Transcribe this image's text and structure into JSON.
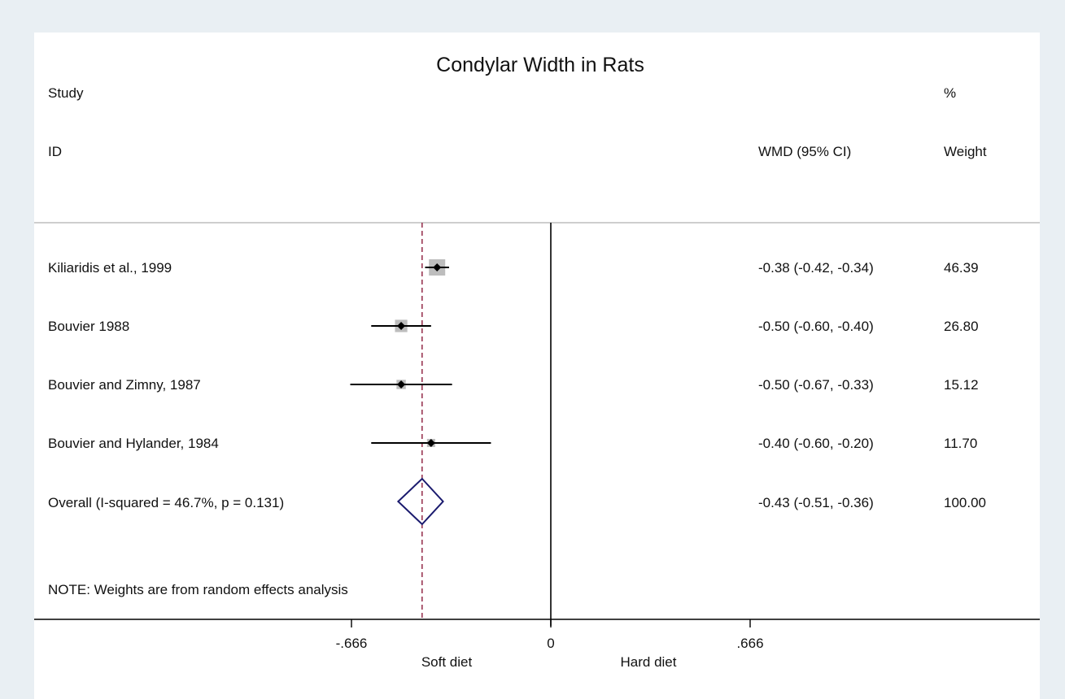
{
  "chart_data": {
    "type": "forest",
    "title": "Condylar Width in Rats",
    "header": {
      "study_line1": "Study",
      "study_line2": "ID",
      "effect_label": "WMD (95% CI)",
      "weight_line1": "%",
      "weight_line2": "Weight"
    },
    "studies": [
      {
        "label": "Kiliaridis  et al., 1999",
        "estimate": -0.38,
        "ci": [
          -0.42,
          -0.34
        ],
        "text": "-0.38 (-0.42, -0.34)",
        "weight": 46.39,
        "weight_text": "46.39"
      },
      {
        "label": "Bouvier 1988",
        "estimate": -0.5,
        "ci": [
          -0.6,
          -0.4
        ],
        "text": "-0.50 (-0.60, -0.40)",
        "weight": 26.8,
        "weight_text": "26.80"
      },
      {
        "label": "Bouvier and Zimny, 1987",
        "estimate": -0.5,
        "ci": [
          -0.67,
          -0.33
        ],
        "text": "-0.50 (-0.67, -0.33)",
        "weight": 15.12,
        "weight_text": "15.12"
      },
      {
        "label": "Bouvier and Hylander, 1984",
        "estimate": -0.4,
        "ci": [
          -0.6,
          -0.2
        ],
        "text": "-0.40 (-0.60, -0.20)",
        "weight": 11.7,
        "weight_text": "11.70"
      }
    ],
    "overall": {
      "label": "Overall  (I-squared = 46.7%, p = 0.131)",
      "estimate": -0.43,
      "ci": [
        -0.51,
        -0.36
      ],
      "text": "-0.43 (-0.51, -0.36)",
      "weight_text": "100.00"
    },
    "note": "NOTE: Weights are from random effects analysis",
    "x_ticks": [
      {
        "value": -0.666,
        "label": "-.666"
      },
      {
        "value": 0,
        "label": "0"
      },
      {
        "value": 0.666,
        "label": ".666"
      }
    ],
    "favours": {
      "left": "Soft diet",
      "right": "Hard diet"
    },
    "colors": {
      "background": "#e9eff3",
      "plot_area": "#ffffff",
      "box": "#bdbdbd",
      "overall_diamond": "#1a1a6e",
      "pooled_line": "#8b1a3a",
      "axis": "#000000"
    }
  }
}
